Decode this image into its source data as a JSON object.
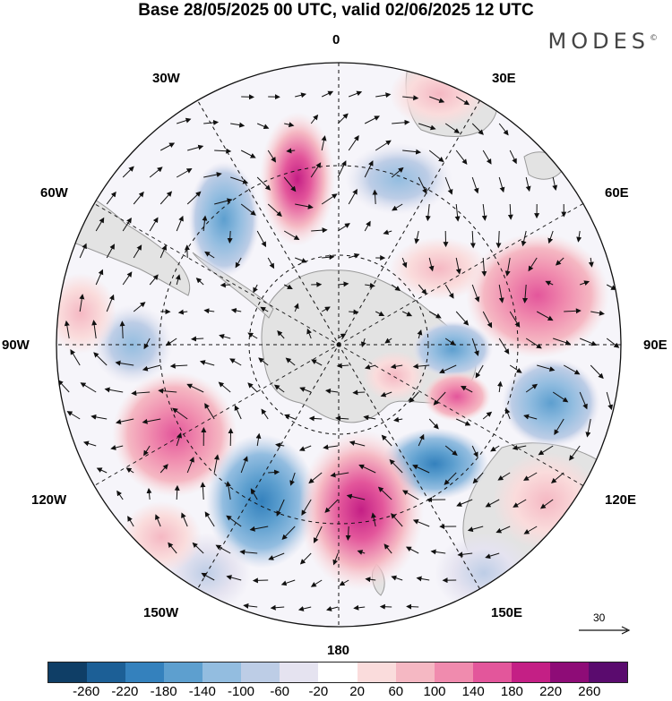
{
  "header": {
    "title": "Base 28/05/2025 00 UTC, valid 02/06/2025 12 UTC",
    "brand": "MODES",
    "brand_mark": "©"
  },
  "map": {
    "projection": "south-polar-stereographic",
    "longitude_labels": {
      "top": "0",
      "upper_left": "30W",
      "upper_right": "30E",
      "left_high": "60W",
      "right_high": "60E",
      "left": "90W",
      "right": "90E",
      "left_low": "120W",
      "right_low": "120E",
      "lower_left": "150W",
      "lower_right": "150E",
      "bottom": "180"
    },
    "reference_vector": {
      "label": "30"
    },
    "colors": {
      "land": "#e3e3e3",
      "coast": "#9a9a9a",
      "grid": "#111111",
      "arrow": "#111111"
    },
    "anomaly_centers": [
      {
        "lon_label": "20W",
        "sign": "positive",
        "level": 200
      },
      {
        "lon_label": "40W",
        "sign": "negative",
        "level": -100
      },
      {
        "lon_label": "80W",
        "sign": "negative",
        "level": -100
      },
      {
        "lon_label": "70E",
        "sign": "positive",
        "level": 140
      },
      {
        "lon_label": "90E",
        "sign": "negative",
        "level": -100
      },
      {
        "lon_label": "105E",
        "sign": "negative",
        "level": -140
      },
      {
        "lon_label": "115E",
        "sign": "negative",
        "level": -140
      },
      {
        "lon_label": "100E",
        "sign": "positive",
        "level": 140
      },
      {
        "lon_label": "115W",
        "sign": "positive",
        "level": 140
      },
      {
        "lon_label": "150W",
        "sign": "negative",
        "level": -140
      },
      {
        "lon_label": "170E",
        "sign": "positive",
        "level": 220
      }
    ]
  },
  "colorbar": {
    "ticks": [
      "-260",
      "-220",
      "-180",
      "-140",
      "-100",
      "-60",
      "-20",
      "20",
      "60",
      "100",
      "140",
      "180",
      "220",
      "260"
    ],
    "colors": [
      "#0f3e66",
      "#1c5f96",
      "#3481bd",
      "#5d9fcf",
      "#93bde0",
      "#bdcde6",
      "#e5e3f0",
      "#ffffff",
      "#fadcdc",
      "#f5b8c3",
      "#f08bae",
      "#e3569b",
      "#c41f85",
      "#8e0c77",
      "#5a0b6e"
    ]
  }
}
